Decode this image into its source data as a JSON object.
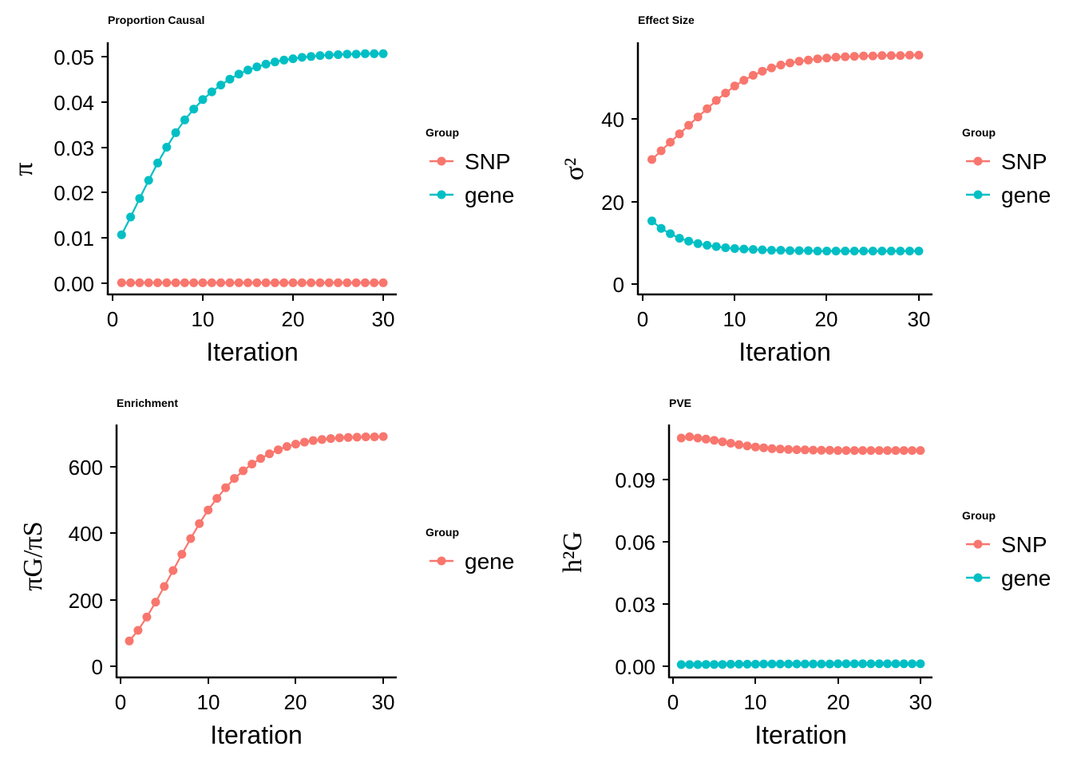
{
  "colors": {
    "SNP": "#F8766D",
    "gene": "#00BFC4",
    "axis": "#000000"
  },
  "charts": [
    {
      "title": "Proportion Causal",
      "xlabel": "Iteration",
      "ylabel": "π",
      "xticks": [
        "0",
        "10",
        "20",
        "30"
      ],
      "yticks": [
        "0.00",
        "0.01",
        "0.02",
        "0.03",
        "0.04",
        "0.05"
      ],
      "legend_title": "Group",
      "legend": [
        "SNP",
        "gene"
      ]
    },
    {
      "title": "Effect Size",
      "xlabel": "Iteration",
      "ylabel": "σ²",
      "xticks": [
        "0",
        "10",
        "20",
        "30"
      ],
      "yticks": [
        "0",
        "20",
        "40"
      ],
      "legend_title": "Group",
      "legend": [
        "SNP",
        "gene"
      ]
    },
    {
      "title": "Enrichment",
      "xlabel": "Iteration",
      "ylabel": "πG/πS",
      "xticks": [
        "0",
        "10",
        "20",
        "30"
      ],
      "yticks": [
        "0",
        "200",
        "400",
        "600"
      ],
      "legend_title": "Group",
      "legend": [
        "gene"
      ]
    },
    {
      "title": "PVE",
      "xlabel": "Iteration",
      "ylabel": "h²G",
      "xticks": [
        "0",
        "10",
        "20",
        "30"
      ],
      "yticks": [
        "0.00",
        "0.03",
        "0.06",
        "0.09"
      ],
      "legend_title": "Group",
      "legend": [
        "SNP",
        "gene"
      ]
    }
  ],
  "chart_data": [
    {
      "type": "line",
      "title": "Proportion Causal",
      "xlabel": "Iteration",
      "ylabel": "π",
      "xlim": [
        0,
        30
      ],
      "ylim": [
        0,
        0.05
      ],
      "grid": false,
      "legend_position": "right",
      "x": [
        1,
        2,
        3,
        4,
        5,
        6,
        7,
        8,
        9,
        10,
        11,
        12,
        13,
        14,
        15,
        16,
        17,
        18,
        19,
        20,
        21,
        22,
        23,
        24,
        25,
        26,
        27,
        28,
        29,
        30
      ],
      "series": [
        {
          "name": "SNP",
          "color": "#F8766D",
          "values": [
            0.0001,
            0.0001,
            0.0001,
            0.0001,
            0.0001,
            0.0001,
            0.0001,
            0.0001,
            0.0001,
            0.0001,
            0.0001,
            0.0001,
            0.0001,
            0.0001,
            0.0001,
            0.0001,
            0.0001,
            0.0001,
            0.0001,
            0.0001,
            0.0001,
            0.0001,
            0.0001,
            0.0001,
            0.0001,
            0.0001,
            0.0001,
            0.0001,
            0.0001,
            0.0001
          ]
        },
        {
          "name": "gene",
          "color": "#00BFC4",
          "values": [
            0.0107,
            0.0146,
            0.0187,
            0.0227,
            0.0265,
            0.03,
            0.0332,
            0.036,
            0.0384,
            0.0405,
            0.0422,
            0.0437,
            0.045,
            0.0461,
            0.047,
            0.0477,
            0.0483,
            0.0488,
            0.0492,
            0.0495,
            0.0498,
            0.05,
            0.0502,
            0.0503,
            0.0504,
            0.0505,
            0.0505,
            0.0506,
            0.0506,
            0.0506
          ]
        }
      ]
    },
    {
      "type": "line",
      "title": "Effect Size",
      "xlabel": "Iteration",
      "ylabel": "σ²",
      "xlim": [
        0,
        30
      ],
      "ylim": [
        0,
        56
      ],
      "grid": false,
      "legend_position": "right",
      "x": [
        1,
        2,
        3,
        4,
        5,
        6,
        7,
        8,
        9,
        10,
        11,
        12,
        13,
        14,
        15,
        16,
        17,
        18,
        19,
        20,
        21,
        22,
        23,
        24,
        25,
        26,
        27,
        28,
        29,
        30
      ],
      "series": [
        {
          "name": "SNP",
          "color": "#F8766D",
          "values": [
            30.2,
            32.3,
            34.4,
            36.4,
            38.5,
            40.5,
            42.5,
            44.5,
            46.3,
            48.0,
            49.4,
            50.6,
            51.6,
            52.4,
            53.1,
            53.6,
            54.0,
            54.3,
            54.6,
            54.8,
            55.0,
            55.1,
            55.2,
            55.3,
            55.3,
            55.4,
            55.4,
            55.4,
            55.5,
            55.5
          ]
        },
        {
          "name": "gene",
          "color": "#00BFC4",
          "values": [
            15.3,
            13.5,
            12.2,
            11.1,
            10.4,
            9.8,
            9.4,
            9.1,
            8.8,
            8.6,
            8.5,
            8.4,
            8.3,
            8.2,
            8.2,
            8.1,
            8.1,
            8.1,
            8.0,
            8.0,
            8.0,
            8.0,
            8.0,
            8.0,
            8.0,
            8.0,
            8.0,
            8.0,
            8.0,
            8.0
          ]
        }
      ]
    },
    {
      "type": "line",
      "title": "Enrichment",
      "xlabel": "Iteration",
      "ylabel": "πG/πS",
      "xlim": [
        0,
        30
      ],
      "ylim": [
        0,
        700
      ],
      "grid": false,
      "legend_position": "right",
      "x": [
        1,
        2,
        3,
        4,
        5,
        6,
        7,
        8,
        9,
        10,
        11,
        12,
        13,
        14,
        15,
        16,
        17,
        18,
        19,
        20,
        21,
        22,
        23,
        24,
        25,
        26,
        27,
        28,
        29,
        30
      ],
      "series": [
        {
          "name": "gene",
          "color": "#F8766D",
          "values": [
            76,
            108,
            148,
            193,
            240,
            288,
            337,
            384,
            429,
            470,
            505,
            537,
            565,
            588,
            608,
            625,
            639,
            651,
            661,
            668,
            674,
            679,
            682,
            685,
            687,
            688,
            689,
            690,
            690,
            691
          ]
        }
      ]
    },
    {
      "type": "line",
      "title": "PVE",
      "xlabel": "Iteration",
      "ylabel": "h²G",
      "xlim": [
        0,
        30
      ],
      "ylim": [
        0,
        0.11
      ],
      "grid": false,
      "legend_position": "right",
      "x": [
        1,
        2,
        3,
        4,
        5,
        6,
        7,
        8,
        9,
        10,
        11,
        12,
        13,
        14,
        15,
        16,
        17,
        18,
        19,
        20,
        21,
        22,
        23,
        24,
        25,
        26,
        27,
        28,
        29,
        30
      ],
      "series": [
        {
          "name": "SNP",
          "color": "#F8766D",
          "values": [
            0.11,
            0.1106,
            0.11,
            0.1095,
            0.1089,
            0.1082,
            0.1075,
            0.1068,
            0.1062,
            0.1057,
            0.1053,
            0.1049,
            0.1047,
            0.1045,
            0.1044,
            0.1043,
            0.1042,
            0.1041,
            0.1041,
            0.104,
            0.104,
            0.104,
            0.104,
            0.104,
            0.104,
            0.104,
            0.104,
            0.104,
            0.104,
            0.104
          ]
        },
        {
          "name": "gene",
          "color": "#00BFC4",
          "values": [
            0.0008,
            0.0008,
            0.0008,
            0.0009,
            0.0009,
            0.0009,
            0.001,
            0.001,
            0.001,
            0.001,
            0.0011,
            0.0011,
            0.0011,
            0.0011,
            0.0011,
            0.0011,
            0.0011,
            0.0011,
            0.0011,
            0.0012,
            0.0012,
            0.0012,
            0.0012,
            0.0012,
            0.0012,
            0.0012,
            0.0012,
            0.0012,
            0.0012,
            0.0012
          ]
        }
      ]
    }
  ]
}
